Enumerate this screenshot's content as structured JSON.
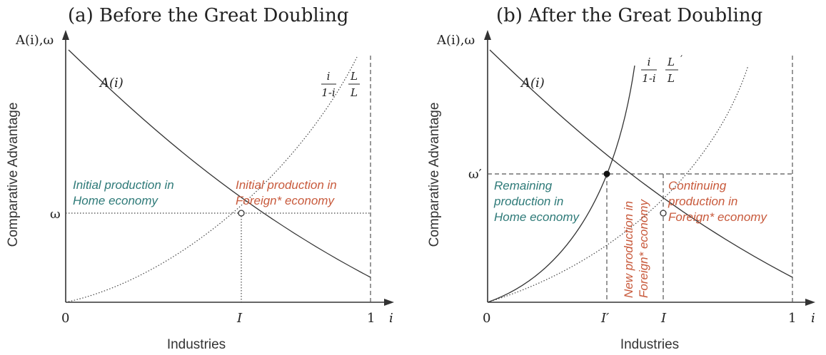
{
  "panel_a": {
    "title": "(a) Before the Great Doubling",
    "y_axis_label": "Comparative Advantage",
    "x_axis_label": "Industries",
    "y_symbol": "A(i),ω",
    "x_symbol": "i",
    "origin_label": "0",
    "one_label": "1",
    "omega_label": "ω",
    "I_label": "I",
    "curve_label": "A(i)",
    "ratio_num": "i",
    "ratio_den": "1-i",
    "ratio2_num": "L",
    "ratio2_den": "L",
    "home_text_1": "Initial production in",
    "home_text_2": "Home economy",
    "foreign_text_1": "Initial production in",
    "foreign_text_2": "Foreign* economy"
  },
  "panel_b": {
    "title": "(b) After the Great Doubling",
    "y_axis_label": "Comparative Advantage",
    "x_axis_label": "Industries",
    "y_symbol": "A(i),ω",
    "x_symbol": "i",
    "origin_label": "0",
    "one_label": "1",
    "omega_label": "ω′",
    "I_prime_label": "I′",
    "I_label": "I",
    "curve_label": "A(i)",
    "ratio_num": "i",
    "ratio_den": "1-i",
    "ratio2_num": "L",
    "ratio2_den": "L",
    "home_text_1": "Remaining",
    "home_text_2": "production in",
    "home_text_3": "Home economy",
    "new_text_1": "New production in",
    "new_text_2": "Foreign* economy",
    "cont_text_1": "Continuing",
    "cont_text_2": "production in",
    "cont_text_3": "Foreign* economy"
  },
  "colors": {
    "home": "#2e7a78",
    "foreign": "#c85a3c",
    "ink": "#333333"
  }
}
